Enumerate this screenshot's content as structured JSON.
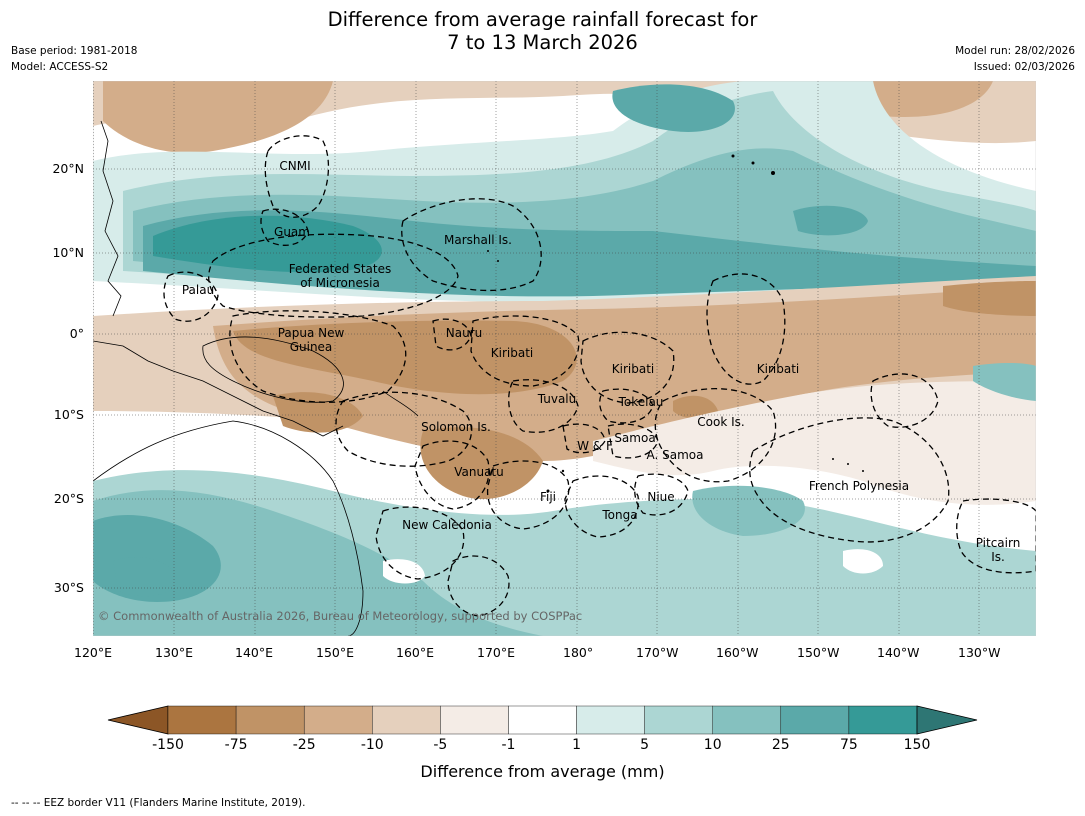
{
  "header": {
    "title_line1": "Difference from average rainfall forecast for",
    "title_line2": "7 to 13 March 2026",
    "base_period": "Base period: 1981-2018",
    "model": "Model: ACCESS-S2",
    "model_run": "Model run: 28/02/2026",
    "issued": "Issued: 02/03/2026"
  },
  "map": {
    "x_labels": [
      "120°E",
      "130°E",
      "140°E",
      "150°E",
      "160°E",
      "170°E",
      "180°",
      "170°W",
      "160°W",
      "150°W",
      "140°W",
      "130°W"
    ],
    "y_labels": [
      "20°N",
      "10°N",
      "0°",
      "10°S",
      "20°S",
      "30°S"
    ],
    "regions": {
      "cnmi": "CNMI",
      "guam": "Guam",
      "marshall": "Marshall Is.",
      "fsm1": "Federated States",
      "fsm2": "of Micronesia",
      "palau": "Palau",
      "png1": "Papua New",
      "png2": "Guinea",
      "nauru": "Nauru",
      "kiribati_w": "Kiribati",
      "kiribati_c": "Kiribati",
      "kiribati_e": "Kiribati",
      "tuvalu": "Tuvalu",
      "tokelau": "Tokelau",
      "cook": "Cook Is.",
      "solomon": "Solomon Is.",
      "samoa": "Samoa",
      "wf": "W & F",
      "asamoa": "A. Samoa",
      "vanuatu": "Vanuatu",
      "fiji": "Fiji",
      "niue": "Niue",
      "french_poly": "French Polynesia",
      "tonga": "Tonga",
      "new_cal": "New Caledonia",
      "pitcairn1": "Pitcairn",
      "pitcairn2": "Is."
    },
    "copyright": "© Commonwealth of Australia 2026, Bureau of Meteorology, supported by COSPPac"
  },
  "colorbar": {
    "labels": [
      "-150",
      "-75",
      "-25",
      "-10",
      "-5",
      "-1",
      "1",
      "5",
      "10",
      "25",
      "75",
      "150"
    ],
    "colors": [
      "#8c5626",
      "#ab7540",
      "#c09366",
      "#d3ad8a",
      "#e5d0bd",
      "#f4ece6",
      "#ffffff",
      "#d7ecea",
      "#acd6d3",
      "#85c1bf",
      "#5ba9a9",
      "#359a97",
      "#2e7674"
    ],
    "title": "Difference from average (mm)"
  },
  "palette": {
    "brown_dark": "#c09366",
    "brown_mid": "#d3ad8a",
    "brown_light": "#e5d0bd",
    "brown_pale": "#f4ece6",
    "teal_pale": "#d7ecea",
    "teal_light": "#acd6d3",
    "teal_mid": "#85c1bf",
    "teal": "#5ba9a9",
    "teal_dark": "#359a97"
  },
  "footnote": "--  --  -- EEZ border V11 (Flanders Marine Institute, 2019)."
}
